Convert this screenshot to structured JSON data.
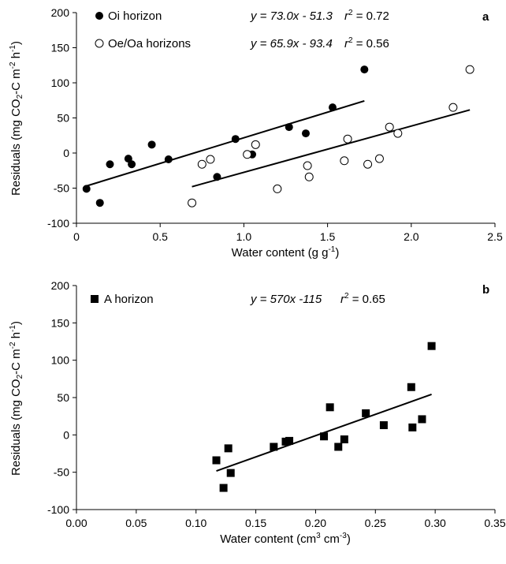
{
  "chart_data": [
    {
      "type": "scatter",
      "panel_label": "a",
      "xlabel": {
        "main": "Water content (g g",
        "sup": "-1",
        "tail": ")"
      },
      "ylabel": "Residuals (mg CO₂-C m⁻² h⁻¹)",
      "xlim": [
        0,
        2.5
      ],
      "ylim": [
        -100,
        200
      ],
      "xticks": [
        0,
        0.5,
        1.0,
        1.5,
        2.0,
        2.5
      ],
      "xtick_labels": [
        "0",
        "0.5",
        "1.0",
        "1.5",
        "2.0",
        "2.5"
      ],
      "yticks": [
        -100,
        -50,
        0,
        50,
        100,
        150,
        200
      ],
      "ytick_labels": [
        "-100",
        "-50",
        "0",
        "50",
        "100",
        "150",
        "200"
      ],
      "grid": false,
      "legend_position": "top-left",
      "series": [
        {
          "name": "Oi horizon",
          "marker": "filled-circle",
          "color": "#000000",
          "equation": {
            "eq": "y = 73.0x  - 51.3",
            "r2_label": "r",
            "r2_value": " = 0.72"
          },
          "fit": {
            "slope": 73.0,
            "intercept": -51.3,
            "x_range": [
              0.06,
              1.72
            ]
          },
          "x": [
            0.06,
            0.14,
            0.2,
            0.31,
            0.33,
            0.45,
            0.55,
            0.75,
            0.84,
            0.95,
            1.05,
            1.27,
            1.37,
            1.53,
            1.72
          ],
          "y": [
            -51,
            -71,
            -16,
            -8,
            -16,
            12,
            -9,
            -16,
            -34,
            20,
            -2,
            37,
            28,
            65,
            119
          ]
        },
        {
          "name": "Oe/Oa horizons",
          "marker": "open-circle",
          "color": "#000000",
          "equation": {
            "eq": "y = 65.9x  - 93.4",
            "r2_label": "r",
            "r2_value": " = 0.56"
          },
          "fit": {
            "slope": 65.9,
            "intercept": -93.4,
            "x_range": [
              0.69,
              2.35
            ]
          },
          "x": [
            0.69,
            0.75,
            0.8,
            1.02,
            1.07,
            1.2,
            1.38,
            1.39,
            1.6,
            1.62,
            1.74,
            1.81,
            1.87,
            1.92,
            2.25,
            2.35
          ],
          "y": [
            -71,
            -16,
            -9,
            -2,
            12,
            -51,
            -18,
            -34,
            -11,
            20,
            -16,
            -8,
            37,
            28,
            65,
            119
          ]
        }
      ]
    },
    {
      "type": "scatter",
      "panel_label": "b",
      "xlabel": {
        "main": "Water content (cm",
        "sup1": "3",
        "mid": " cm",
        "sup2": "-3",
        "tail": ")"
      },
      "ylabel": "Residuals (mg CO₂-C m⁻² h⁻¹)",
      "xlim": [
        0,
        0.35
      ],
      "ylim": [
        -100,
        200
      ],
      "xticks": [
        0,
        0.05,
        0.1,
        0.15,
        0.2,
        0.25,
        0.3,
        0.35
      ],
      "xtick_labels": [
        "0.00",
        "0.05",
        "0.10",
        "0.15",
        "0.20",
        "0.25",
        "0.30",
        "0.35"
      ],
      "yticks": [
        -100,
        -50,
        0,
        50,
        100,
        150,
        200
      ],
      "ytick_labels": [
        "-100",
        "-50",
        "0",
        "50",
        "100",
        "150",
        "200"
      ],
      "grid": false,
      "legend_position": "top-left",
      "series": [
        {
          "name": "A horizon",
          "marker": "filled-square",
          "color": "#000000",
          "equation": {
            "eq": "y = 570x  -115",
            "r2_label": "r",
            "r2_value": " = 0.65"
          },
          "fit": {
            "slope": 570,
            "intercept": -115,
            "x_range": [
              0.117,
              0.297
            ]
          },
          "x": [
            0.117,
            0.123,
            0.127,
            0.129,
            0.165,
            0.175,
            0.178,
            0.207,
            0.212,
            0.219,
            0.224,
            0.242,
            0.257,
            0.28,
            0.281,
            0.289,
            0.297
          ],
          "y": [
            -34,
            -71,
            -18,
            -51,
            -16,
            -9,
            -8,
            -2,
            37,
            -16,
            -6,
            29,
            13,
            64,
            10,
            21,
            119
          ]
        }
      ]
    }
  ]
}
